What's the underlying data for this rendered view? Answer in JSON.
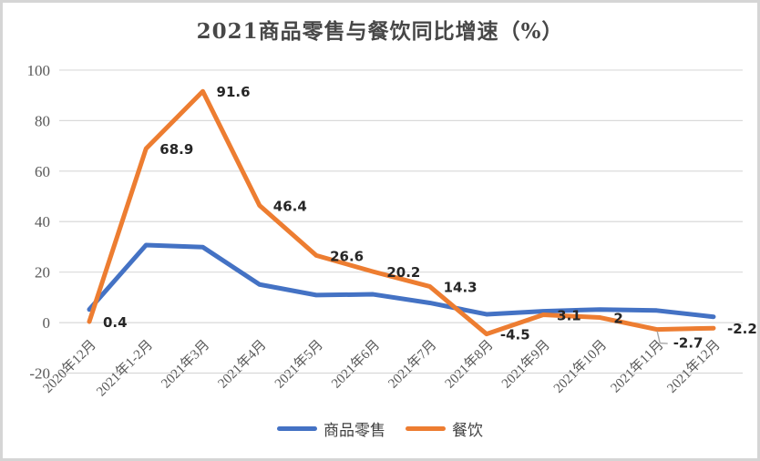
{
  "title": "2021商品零售与餐饮同比增速（%）",
  "colors": {
    "retail_line": "#4472C4",
    "catering_line": "#ED7D31",
    "gridline": "#D9D9D9",
    "axis_text": "#595959",
    "data_label_text": "#262626",
    "leader_line": "#A6A6A6",
    "frame_border": "#D5D5D5",
    "background": "#FFFFFF"
  },
  "chart_data": {
    "type": "line",
    "title": "2021商品零售与餐饮同比增速（%）",
    "categories": [
      "2020年12月",
      "2021年1-2月",
      "2021年3月",
      "2021年4月",
      "2021年5月",
      "2021年6月",
      "2021年7月",
      "2021年8月",
      "2021年9月",
      "2021年10月",
      "2021年11月",
      "2021年12月"
    ],
    "series": [
      {
        "name": "商品零售",
        "color": "#4472C4",
        "values": [
          5.2,
          30.7,
          29.9,
          15.1,
          10.9,
          11.2,
          7.8,
          3.3,
          4.5,
          5.2,
          4.8,
          2.3
        ],
        "labels_shown": false
      },
      {
        "name": "餐饮",
        "color": "#ED7D31",
        "values": [
          0.4,
          68.9,
          91.6,
          46.4,
          26.6,
          20.2,
          14.3,
          -4.5,
          3.1,
          2,
          -2.7,
          -2.2
        ],
        "labels_shown": true,
        "data_labels": [
          "0.4",
          "68.9",
          "91.6",
          "46.4",
          "26.6",
          "20.2",
          "14.3",
          "-4.5",
          "3.1",
          "2",
          "-2.7",
          "-2.2"
        ],
        "label_with_leader_index": 10
      }
    ],
    "y_ticks": [
      100,
      80,
      60,
      40,
      20,
      0,
      -20
    ],
    "ylim": [
      -20,
      100
    ],
    "xlabel": "",
    "ylabel": "",
    "grid": "horizontal",
    "legend_position": "bottom"
  },
  "legend": {
    "items": [
      {
        "label": "商品零售",
        "color": "#4472C4"
      },
      {
        "label": "餐饮",
        "color": "#ED7D31"
      }
    ]
  }
}
